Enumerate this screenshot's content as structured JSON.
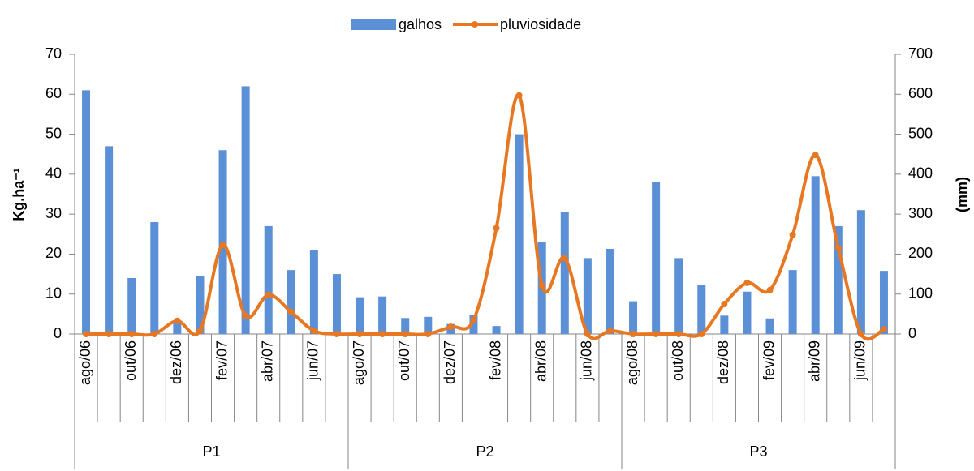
{
  "chart_data": {
    "type": "bar",
    "y_label": "Kg.ha⁻¹",
    "y2_label": "(mm)",
    "categories": [
      "ago/06",
      null,
      "out/06",
      null,
      "dez/06",
      null,
      "fev/07",
      null,
      "abr/07",
      null,
      "jun/07",
      null,
      "ago/07",
      null,
      "out/07",
      null,
      "dez/07",
      null,
      "fev/08",
      null,
      "abr/08",
      null,
      "jun/08",
      null,
      "ago/08",
      null,
      "out/08",
      null,
      "dez/08",
      null,
      "fev/09",
      null,
      "abr/09",
      null,
      "jun/09",
      null
    ],
    "groups": [
      "P1",
      "P2",
      "P3"
    ],
    "series": [
      {
        "name": "galhos",
        "type": "bar",
        "color": "#5b8fd6",
        "values": [
          61,
          47,
          14,
          28,
          3,
          14.5,
          46,
          62,
          27,
          16,
          21,
          15,
          9.2,
          9.4,
          4,
          4.3,
          2.5,
          4.8,
          2,
          50,
          23,
          30.5,
          19,
          21.3,
          8.2,
          38,
          19,
          12.2,
          4.6,
          10.6,
          3.9,
          16,
          39.5,
          27,
          31,
          15.8
        ]
      },
      {
        "name": "pluviosidade",
        "type": "line",
        "axis": "y2",
        "color": "#e87722",
        "values": [
          0,
          0,
          0,
          0,
          33,
          8,
          223,
          45,
          98,
          55,
          8,
          0,
          0,
          0,
          0,
          0,
          18,
          35,
          265,
          597,
          122,
          190,
          0,
          8,
          0,
          0,
          0,
          0,
          75,
          128,
          110,
          248,
          448,
          215,
          0,
          12
        ]
      }
    ],
    "ylim": [
      0,
      70
    ],
    "yticks": [
      0,
      10,
      20,
      30,
      40,
      50,
      60,
      70
    ],
    "y2lim": [
      0,
      700
    ],
    "y2ticks": [
      0,
      100,
      200,
      300,
      400,
      500,
      600,
      700
    ],
    "legend": "top"
  }
}
